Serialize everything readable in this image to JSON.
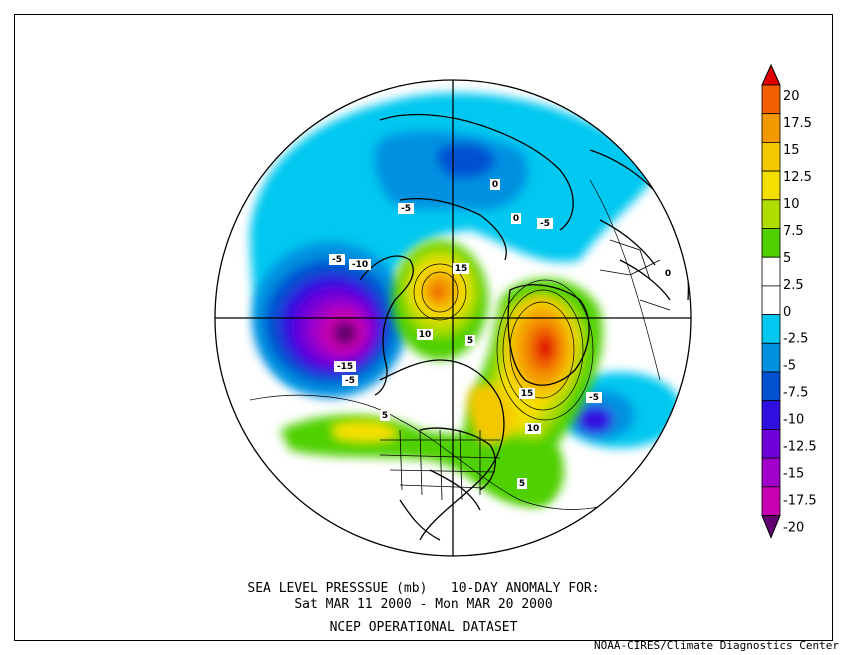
{
  "figure": {
    "title_line1": "SEA LEVEL PRESSSUE (mb)   10-DAY ANOMALY FOR:",
    "title_line2": "Sat MAR 11 2000 - Mon MAR 20 2000",
    "dataset": "NCEP OPERATIONAL DATASET",
    "credit": "NOAA-CIRES/Climate Diagnostics Center",
    "projection": "north polar stereographic"
  },
  "colorbar": {
    "labels": [
      "20",
      "17.5",
      "15",
      "12.5",
      "10",
      "7.5",
      "5",
      "2.5",
      "0",
      "-2.5",
      "-5",
      "-7.5",
      "-10",
      "-12.5",
      "-15",
      "-17.5",
      "-20"
    ],
    "colors": [
      "#e00000",
      "#f06000",
      "#f49800",
      "#f4c800",
      "#f4e000",
      "#b0dc00",
      "#50d000",
      "#ffffff",
      "#ffffff",
      "#00c8f0",
      "#0090e0",
      "#0050d0",
      "#3010e0",
      "#7000d8",
      "#a000c8",
      "#c800b0",
      "#600070"
    ]
  },
  "anomalies": [
    {
      "name": "low-north-pacific",
      "value": -20,
      "color": "#600070"
    },
    {
      "name": "high-greenland",
      "value": 20,
      "color": "#e00000"
    },
    {
      "name": "high-arctic-siberia",
      "value": 17.5,
      "color": "#f06000"
    },
    {
      "name": "low-mid-atlantic",
      "value": -10,
      "color": "#3010e0"
    },
    {
      "name": "high-eastern-north-america",
      "value": 12.5,
      "color": "#f4c800"
    }
  ],
  "contour_labels": [
    {
      "text": "-5"
    },
    {
      "text": "-10"
    },
    {
      "text": "-15"
    },
    {
      "text": "-5"
    },
    {
      "text": "10"
    },
    {
      "text": "15"
    },
    {
      "text": "15"
    },
    {
      "text": "10"
    },
    {
      "text": "5"
    },
    {
      "text": "5"
    },
    {
      "text": "-5"
    },
    {
      "text": "-5"
    },
    {
      "text": "0"
    },
    {
      "text": "0"
    },
    {
      "text": "0"
    },
    {
      "text": "5"
    },
    {
      "text": "-5"
    }
  ]
}
